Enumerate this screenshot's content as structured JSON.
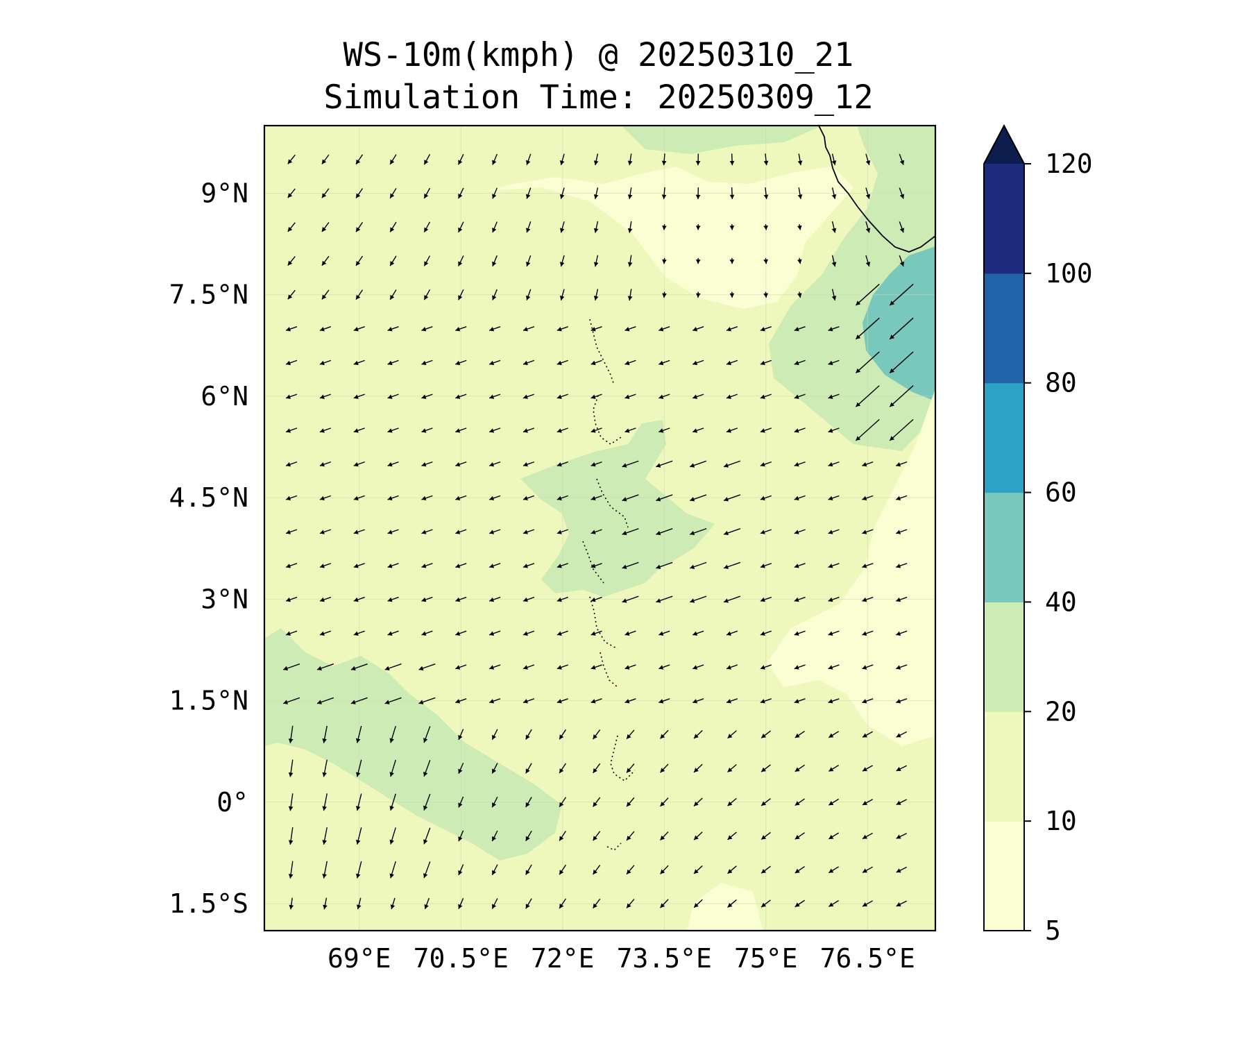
{
  "title": "WS-10m(kmph) @ 20250310_21",
  "subtitle": "Simulation Time: 20250309_12",
  "chart_data": {
    "type": "map",
    "variable": "10 m wind speed (kmph) with wind direction vectors",
    "lon_range": [
      67.6,
      77.5
    ],
    "lat_range": [
      -1.9,
      10.0
    ],
    "x_ticks": [
      {
        "value": 69,
        "label": "69°E"
      },
      {
        "value": 70.5,
        "label": "70.5°E"
      },
      {
        "value": 72,
        "label": "72°E"
      },
      {
        "value": 73.5,
        "label": "73.5°E"
      },
      {
        "value": 75,
        "label": "75°E"
      },
      {
        "value": 76.5,
        "label": "76.5°E"
      }
    ],
    "y_ticks": [
      {
        "value": 9,
        "label": "9°N"
      },
      {
        "value": 7.5,
        "label": "7.5°N"
      },
      {
        "value": 6,
        "label": "6°N"
      },
      {
        "value": 4.5,
        "label": "4.5°N"
      },
      {
        "value": 3,
        "label": "3°N"
      },
      {
        "value": 1.5,
        "label": "1.5°N"
      },
      {
        "value": 0,
        "label": "0°"
      },
      {
        "value": -1.5,
        "label": "1.5°S"
      }
    ],
    "grid": true,
    "colorbar": {
      "levels": [
        5,
        10,
        20,
        40,
        60,
        80,
        100,
        120
      ],
      "labels": [
        "5",
        "10",
        "20",
        "40",
        "60",
        "80",
        "100",
        "120"
      ],
      "colors": [
        "#fbfdd3",
        "#eef8bc",
        "#cdebb4",
        "#78c8bb",
        "#2ea1c6",
        "#2163a8",
        "#1d2b7e"
      ],
      "extend_color": "#0d1d4e",
      "extend": "max"
    },
    "colors": {
      "land_outline": "#000000",
      "vector": "#000000",
      "background": "#eef8bc"
    },
    "vector_grid_spacing_deg": 0.5
  }
}
